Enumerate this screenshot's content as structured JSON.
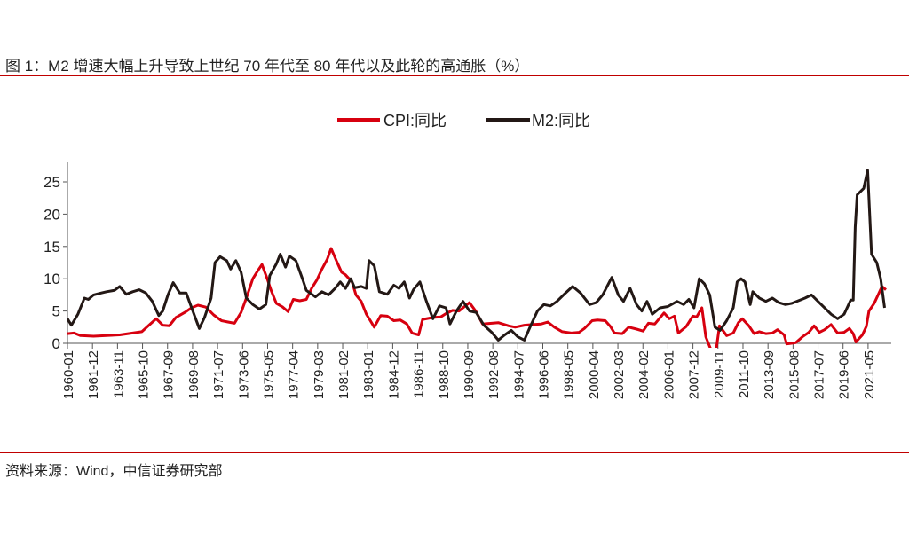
{
  "title": "图 1：M2 增速大幅上升导致上世纪 70 年代至 80 年代以及此轮的高通胀（%）",
  "source": "资料来源：Wind，中信证券研究部",
  "chart_data": {
    "type": "line",
    "title": "图 1：M2 增速大幅上升导致上世纪 70 年代至 80 年代以及此轮的高通胀（%）",
    "xlabel": "",
    "ylabel": "%",
    "ylim": [
      0,
      27
    ],
    "xlim": [
      1960.0,
      2022.7
    ],
    "yticks": [
      "0",
      "5",
      "10",
      "15",
      "20",
      "25"
    ],
    "xticks": [
      "1960-01",
      "1961-12",
      "1963-11",
      "1965-10",
      "1967-09",
      "1969-08",
      "1971-07",
      "1973-06",
      "1975-05",
      "1977-04",
      "1979-03",
      "1981-02",
      "1983-01",
      "1984-12",
      "1986-11",
      "1988-10",
      "1990-09",
      "1992-08",
      "1994-07",
      "1996-06",
      "1998-05",
      "2000-04",
      "2002-03",
      "2004-02",
      "2006-01",
      "2007-12",
      "2009-11",
      "2011-10",
      "2013-09",
      "2015-08",
      "2017-07",
      "2019-06",
      "2021-05"
    ],
    "legend_position": "top-center",
    "grid": false,
    "series": [
      {
        "name": "CPI:同比",
        "color": "#d7000f",
        "points": [
          [
            1960,
            1.5
          ],
          [
            1960.5,
            1.6
          ],
          [
            1961,
            1.2
          ],
          [
            1962,
            1.1
          ],
          [
            1963,
            1.2
          ],
          [
            1964,
            1.3
          ],
          [
            1965,
            1.6
          ],
          [
            1965.7,
            1.8
          ],
          [
            1966.3,
            2.9
          ],
          [
            1966.8,
            3.8
          ],
          [
            1967.3,
            2.8
          ],
          [
            1967.8,
            2.7
          ],
          [
            1968.3,
            4.0
          ],
          [
            1969,
            4.8
          ],
          [
            1969.5,
            5.5
          ],
          [
            1970,
            5.9
          ],
          [
            1970.6,
            5.6
          ],
          [
            1971.2,
            4.4
          ],
          [
            1971.8,
            3.5
          ],
          [
            1972.3,
            3.3
          ],
          [
            1972.8,
            3.1
          ],
          [
            1973.3,
            4.8
          ],
          [
            1973.7,
            7.0
          ],
          [
            1974.2,
            10.0
          ],
          [
            1974.6,
            11.3
          ],
          [
            1974.9,
            12.2
          ],
          [
            1975.3,
            10.0
          ],
          [
            1975.6,
            8.2
          ],
          [
            1976,
            6.2
          ],
          [
            1976.5,
            5.6
          ],
          [
            1976.9,
            4.9
          ],
          [
            1977.3,
            6.8
          ],
          [
            1977.8,
            6.6
          ],
          [
            1978.3,
            6.8
          ],
          [
            1978.7,
            8.5
          ],
          [
            1979.1,
            9.8
          ],
          [
            1979.5,
            11.5
          ],
          [
            1979.9,
            13.0
          ],
          [
            1980.2,
            14.7
          ],
          [
            1980.6,
            12.8
          ],
          [
            1981,
            11.0
          ],
          [
            1981.3,
            10.6
          ],
          [
            1981.8,
            9.5
          ],
          [
            1982.1,
            7.5
          ],
          [
            1982.5,
            6.5
          ],
          [
            1982.9,
            4.5
          ],
          [
            1983.2,
            3.5
          ],
          [
            1983.5,
            2.5
          ],
          [
            1984,
            4.3
          ],
          [
            1984.5,
            4.2
          ],
          [
            1985,
            3.5
          ],
          [
            1985.5,
            3.6
          ],
          [
            1986,
            3.0
          ],
          [
            1986.4,
            1.6
          ],
          [
            1986.9,
            1.3
          ],
          [
            1987.2,
            3.7
          ],
          [
            1988,
            4.0
          ],
          [
            1988.6,
            4.1
          ],
          [
            1989,
            4.6
          ],
          [
            1989.5,
            5.1
          ],
          [
            1990,
            5.0
          ],
          [
            1990.8,
            6.3
          ],
          [
            1991.3,
            4.9
          ],
          [
            1991.8,
            3.0
          ],
          [
            1992.5,
            3.1
          ],
          [
            1993,
            3.2
          ],
          [
            1993.8,
            2.7
          ],
          [
            1994.3,
            2.5
          ],
          [
            1995,
            2.8
          ],
          [
            1995.6,
            2.9
          ],
          [
            1996.3,
            3.0
          ],
          [
            1996.8,
            3.3
          ],
          [
            1997.3,
            2.5
          ],
          [
            1997.9,
            1.8
          ],
          [
            1998.6,
            1.6
          ],
          [
            1999.2,
            1.7
          ],
          [
            1999.6,
            2.3
          ],
          [
            2000.2,
            3.5
          ],
          [
            2000.6,
            3.6
          ],
          [
            2001.2,
            3.5
          ],
          [
            2001.6,
            2.6
          ],
          [
            2001.9,
            1.6
          ],
          [
            2002.5,
            1.5
          ],
          [
            2003,
            2.5
          ],
          [
            2003.6,
            2.2
          ],
          [
            2004.1,
            1.9
          ],
          [
            2004.5,
            3.1
          ],
          [
            2005,
            3.0
          ],
          [
            2005.7,
            4.7
          ],
          [
            2006.1,
            3.8
          ],
          [
            2006.5,
            4.2
          ],
          [
            2006.8,
            1.6
          ],
          [
            2007.4,
            2.6
          ],
          [
            2007.9,
            4.2
          ],
          [
            2008.2,
            4.1
          ],
          [
            2008.6,
            5.5
          ],
          [
            2008.9,
            1.0
          ],
          [
            2009.1,
            0.0
          ],
          [
            2009.4,
            -1.5
          ],
          [
            2009.7,
            -1.0
          ],
          [
            2009.95,
            2.7
          ],
          [
            2010.5,
            1.2
          ],
          [
            2011,
            1.6
          ],
          [
            2011.4,
            3.2
          ],
          [
            2011.7,
            3.8
          ],
          [
            2012.2,
            2.7
          ],
          [
            2012.6,
            1.5
          ],
          [
            2013,
            1.8
          ],
          [
            2013.5,
            1.5
          ],
          [
            2014,
            1.6
          ],
          [
            2014.4,
            2.1
          ],
          [
            2014.9,
            1.3
          ],
          [
            2015.1,
            -0.1
          ],
          [
            2015.8,
            0.1
          ],
          [
            2016.3,
            1.0
          ],
          [
            2016.8,
            1.7
          ],
          [
            2017.2,
            2.7
          ],
          [
            2017.6,
            1.7
          ],
          [
            2018,
            2.1
          ],
          [
            2018.5,
            2.9
          ],
          [
            2019,
            1.6
          ],
          [
            2019.5,
            1.7
          ],
          [
            2019.9,
            2.3
          ],
          [
            2020.2,
            1.5
          ],
          [
            2020.4,
            0.2
          ],
          [
            2020.9,
            1.3
          ],
          [
            2021.2,
            2.6
          ],
          [
            2021.4,
            5.0
          ],
          [
            2021.8,
            6.2
          ],
          [
            2022.1,
            7.5
          ],
          [
            2022.4,
            8.8
          ],
          [
            2022.7,
            8.3
          ]
        ]
      },
      {
        "name": "M2:同比",
        "color": "#231815",
        "points": [
          [
            1960,
            3.8
          ],
          [
            1960.3,
            2.8
          ],
          [
            1960.8,
            4.5
          ],
          [
            1961.3,
            7.0
          ],
          [
            1961.6,
            6.8
          ],
          [
            1962,
            7.5
          ],
          [
            1962.6,
            7.8
          ],
          [
            1963,
            8.0
          ],
          [
            1963.6,
            8.2
          ],
          [
            1964,
            8.8
          ],
          [
            1964.5,
            7.6
          ],
          [
            1965,
            8.0
          ],
          [
            1965.5,
            8.3
          ],
          [
            1966,
            7.8
          ],
          [
            1966.5,
            6.5
          ],
          [
            1967,
            4.3
          ],
          [
            1967.3,
            5.0
          ],
          [
            1967.7,
            7.5
          ],
          [
            1968.1,
            9.4
          ],
          [
            1968.6,
            7.8
          ],
          [
            1969.1,
            7.8
          ],
          [
            1969.6,
            5.0
          ],
          [
            1970.1,
            2.3
          ],
          [
            1970.5,
            4.0
          ],
          [
            1971,
            7.0
          ],
          [
            1971.3,
            12.5
          ],
          [
            1971.7,
            13.4
          ],
          [
            1972.2,
            12.8
          ],
          [
            1972.5,
            11.5
          ],
          [
            1972.9,
            12.8
          ],
          [
            1973.3,
            11.0
          ],
          [
            1973.7,
            7.0
          ],
          [
            1974.2,
            6.0
          ],
          [
            1974.7,
            5.3
          ],
          [
            1975.2,
            6.0
          ],
          [
            1975.5,
            10.5
          ],
          [
            1976,
            12.3
          ],
          [
            1976.3,
            13.8
          ],
          [
            1976.7,
            11.8
          ],
          [
            1977,
            13.5
          ],
          [
            1977.5,
            12.8
          ],
          [
            1978,
            10.0
          ],
          [
            1978.3,
            8.2
          ],
          [
            1979,
            7.2
          ],
          [
            1979.5,
            8.0
          ],
          [
            1980,
            7.5
          ],
          [
            1980.5,
            8.5
          ],
          [
            1980.9,
            9.5
          ],
          [
            1981.3,
            8.5
          ],
          [
            1981.7,
            10.0
          ],
          [
            1982,
            8.6
          ],
          [
            1982.5,
            8.8
          ],
          [
            1982.9,
            8.5
          ],
          [
            1983.1,
            12.8
          ],
          [
            1983.5,
            12.0
          ],
          [
            1983.9,
            8.0
          ],
          [
            1984.5,
            7.6
          ],
          [
            1985,
            9.0
          ],
          [
            1985.4,
            8.5
          ],
          [
            1985.8,
            9.5
          ],
          [
            1986.2,
            7.0
          ],
          [
            1986.5,
            8.3
          ],
          [
            1987,
            9.5
          ],
          [
            1987.5,
            6.5
          ],
          [
            1988,
            3.8
          ],
          [
            1988.5,
            5.8
          ],
          [
            1989,
            5.5
          ],
          [
            1989.3,
            3.0
          ],
          [
            1989.8,
            5.0
          ],
          [
            1990.3,
            6.5
          ],
          [
            1990.8,
            5.0
          ],
          [
            1991.3,
            4.8
          ],
          [
            1991.9,
            2.8
          ],
          [
            1992.5,
            1.7
          ],
          [
            1993,
            0.5
          ],
          [
            1993.5,
            1.3
          ],
          [
            1994,
            2.0
          ],
          [
            1994.5,
            1.0
          ],
          [
            1995,
            0.5
          ],
          [
            1995.5,
            2.8
          ],
          [
            1996,
            5.0
          ],
          [
            1996.5,
            6.0
          ],
          [
            1997,
            5.8
          ],
          [
            1997.5,
            6.5
          ],
          [
            1998,
            7.5
          ],
          [
            1998.7,
            8.8
          ],
          [
            1999.3,
            7.8
          ],
          [
            2000,
            6.0
          ],
          [
            2000.5,
            6.3
          ],
          [
            2001,
            7.5
          ],
          [
            2001.7,
            10.2
          ],
          [
            2002.2,
            7.5
          ],
          [
            2002.6,
            6.5
          ],
          [
            2003.1,
            8.5
          ],
          [
            2003.6,
            6.0
          ],
          [
            2004,
            5.0
          ],
          [
            2004.4,
            6.5
          ],
          [
            2004.8,
            4.5
          ],
          [
            2005.4,
            5.5
          ],
          [
            2006,
            5.7
          ],
          [
            2006.7,
            6.5
          ],
          [
            2007.2,
            6.0
          ],
          [
            2007.6,
            6.8
          ],
          [
            2008,
            5.5
          ],
          [
            2008.4,
            10.0
          ],
          [
            2008.8,
            9.2
          ],
          [
            2009.2,
            7.5
          ],
          [
            2009.6,
            2.5
          ],
          [
            2010,
            2.0
          ],
          [
            2010.5,
            3.5
          ],
          [
            2011,
            5.5
          ],
          [
            2011.3,
            9.5
          ],
          [
            2011.6,
            10.0
          ],
          [
            2011.9,
            9.5
          ],
          [
            2012.3,
            6.0
          ],
          [
            2012.5,
            8.0
          ],
          [
            2013,
            7.0
          ],
          [
            2013.5,
            6.5
          ],
          [
            2014,
            7.0
          ],
          [
            2014.5,
            6.3
          ],
          [
            2015,
            6.0
          ],
          [
            2015.5,
            6.2
          ],
          [
            2016.5,
            7.0
          ],
          [
            2017,
            7.5
          ],
          [
            2017.5,
            6.5
          ],
          [
            2018.5,
            4.5
          ],
          [
            2019,
            3.8
          ],
          [
            2019.5,
            4.5
          ],
          [
            2020,
            6.7
          ],
          [
            2020.2,
            6.7
          ],
          [
            2020.35,
            18.0
          ],
          [
            2020.5,
            23.0
          ],
          [
            2021,
            24.0
          ],
          [
            2021.3,
            26.8
          ],
          [
            2021.6,
            13.8
          ],
          [
            2022,
            12.5
          ],
          [
            2022.3,
            10.0
          ],
          [
            2022.6,
            5.5
          ]
        ]
      }
    ]
  }
}
